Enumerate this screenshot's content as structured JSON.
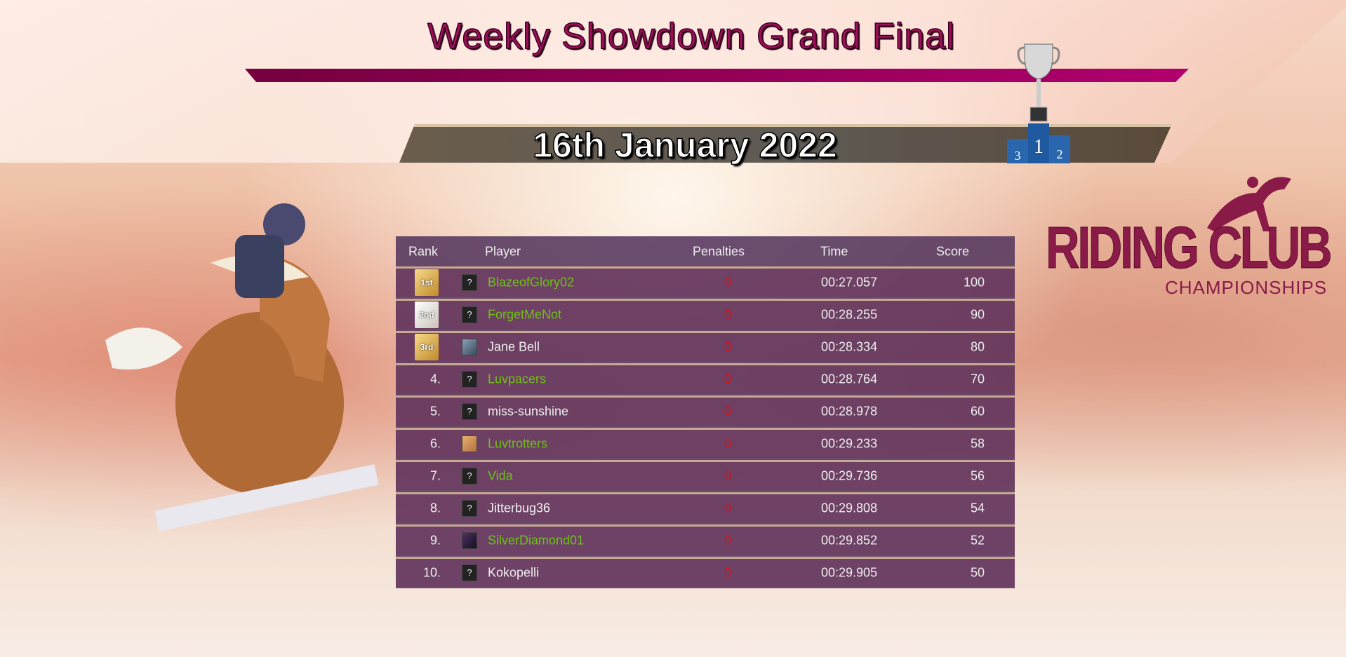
{
  "header": {
    "title": "Weekly Showdown Grand Final",
    "date": "16th January 2022",
    "podium_labels": [
      "3",
      "1",
      "2"
    ]
  },
  "logo": {
    "main": "RIDING CLUB",
    "sub": "CHAMPIONSHIPS"
  },
  "table": {
    "columns": [
      "Rank",
      "Player",
      "Penalties",
      "Time",
      "Score"
    ],
    "rows": [
      {
        "rank": "1st",
        "medal": "gold",
        "avatar": "unknown",
        "player": "BlazeofGlory02",
        "highlight": true,
        "penalties": "0",
        "time": "00:27.057",
        "score": "100"
      },
      {
        "rank": "2nd",
        "medal": "silver",
        "avatar": "unknown",
        "player": "ForgetMeNot",
        "highlight": true,
        "penalties": "0",
        "time": "00:28.255",
        "score": "90"
      },
      {
        "rank": "3rd",
        "medal": "bronze",
        "avatar": "picture",
        "player": "Jane Bell",
        "highlight": false,
        "penalties": "0",
        "time": "00:28.334",
        "score": "80"
      },
      {
        "rank": "4.",
        "avatar": "unknown",
        "player": "Luvpacers",
        "highlight": true,
        "penalties": "0",
        "time": "00:28.764",
        "score": "70"
      },
      {
        "rank": "5.",
        "avatar": "unknown",
        "player": "miss-sunshine",
        "highlight": false,
        "penalties": "0",
        "time": "00:28.978",
        "score": "60"
      },
      {
        "rank": "6.",
        "avatar": "picture",
        "player": "Luvtrotters",
        "highlight": true,
        "penalties": "0",
        "time": "00:29.233",
        "score": "58"
      },
      {
        "rank": "7.",
        "avatar": "unknown",
        "player": "Vida",
        "highlight": true,
        "penalties": "0",
        "time": "00:29.736",
        "score": "56"
      },
      {
        "rank": "8.",
        "avatar": "unknown",
        "player": "Jitterbug36",
        "highlight": false,
        "penalties": "0",
        "time": "00:29.808",
        "score": "54"
      },
      {
        "rank": "9.",
        "avatar": "picture",
        "player": "SilverDiamond01",
        "highlight": true,
        "penalties": "0",
        "time": "00:29.852",
        "score": "52"
      },
      {
        "rank": "10.",
        "avatar": "unknown",
        "player": "Kokopelli",
        "highlight": false,
        "penalties": "0",
        "time": "00:29.905",
        "score": "50"
      }
    ]
  },
  "colors": {
    "title": "#a0105a",
    "highlight_name": "#6cc214",
    "penalty": "#e01010",
    "brand": "#8a1a48"
  }
}
